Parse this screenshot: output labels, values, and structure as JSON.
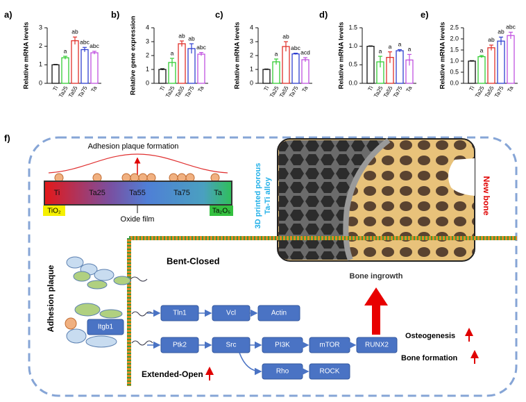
{
  "chart_data": [
    {
      "type": "bar",
      "panel": "a)",
      "ylabel": "Relative mRNA levels",
      "categories": [
        "Ti",
        "Ta25",
        "Ta55",
        "Ta75",
        "Ta"
      ],
      "values": [
        1.0,
        1.38,
        2.3,
        1.82,
        1.65
      ],
      "errors": [
        0.02,
        0.08,
        0.2,
        0.12,
        0.08
      ],
      "annotations": [
        null,
        "a",
        "ab",
        "abc",
        "abc"
      ],
      "colors": [
        "#111111",
        "#33cc33",
        "#e0302a",
        "#2f3fd0",
        "#c050e0"
      ],
      "ylim": [
        0,
        3
      ],
      "yticks": [
        0,
        1,
        2,
        3
      ]
    },
    {
      "type": "bar",
      "panel": "b)",
      "ylabel": "Relative gene expression",
      "categories": [
        "Ti",
        "Ta25",
        "Ta55",
        "Ta75",
        "Ta"
      ],
      "values": [
        1.0,
        1.5,
        2.85,
        2.5,
        2.1
      ],
      "errors": [
        0.05,
        0.3,
        0.2,
        0.35,
        0.12
      ],
      "annotations": [
        null,
        "a",
        "ab",
        "ab",
        "abc"
      ],
      "colors": [
        "#111111",
        "#33cc33",
        "#e0302a",
        "#2f3fd0",
        "#c050e0"
      ],
      "ylim": [
        0,
        4
      ],
      "yticks": [
        0,
        1,
        2,
        3,
        4
      ]
    },
    {
      "type": "bar",
      "panel": "c)",
      "ylabel": "Relative mRNA levels",
      "categories": [
        "Ti",
        "Ta25",
        "Ta55",
        "Ta75",
        "Ta"
      ],
      "values": [
        1.0,
        1.55,
        2.65,
        2.12,
        1.7
      ],
      "errors": [
        0.03,
        0.2,
        0.35,
        0.05,
        0.15
      ],
      "annotations": [
        null,
        "a",
        "ab",
        "abc",
        "acd"
      ],
      "colors": [
        "#111111",
        "#33cc33",
        "#e0302a",
        "#2f3fd0",
        "#c050e0"
      ],
      "ylim": [
        0,
        4
      ],
      "yticks": [
        0,
        1,
        2,
        3,
        4
      ]
    },
    {
      "type": "bar",
      "panel": "d)",
      "ylabel": "Relative mRNA levels",
      "categories": [
        "Ti",
        "Ta25",
        "Ta55",
        "Ta75",
        "Ta"
      ],
      "values": [
        1.0,
        0.58,
        0.7,
        0.88,
        0.63
      ],
      "errors": [
        0.01,
        0.15,
        0.15,
        0.03,
        0.15
      ],
      "annotations": [
        null,
        "a",
        "a",
        "a",
        "a"
      ],
      "colors": [
        "#111111",
        "#33cc33",
        "#e0302a",
        "#2f3fd0",
        "#c050e0"
      ],
      "ylim": [
        0,
        1.5
      ],
      "yticks": [
        {
          "value": 0,
          "label": "0.0"
        },
        {
          "value": 0.5,
          "label": "0.5"
        },
        {
          "value": 1,
          "label": "1.0"
        },
        {
          "value": 1.5,
          "label": "1.5"
        }
      ]
    },
    {
      "type": "bar",
      "panel": "e)",
      "ylabel": "Relative mRNA levels",
      "categories": [
        "Ti",
        "Ta25",
        "Ta55",
        "Ta75",
        "Ta"
      ],
      "values": [
        1.0,
        1.2,
        1.6,
        1.9,
        2.15
      ],
      "errors": [
        0.02,
        0.05,
        0.12,
        0.18,
        0.15
      ],
      "annotations": [
        null,
        "a",
        "ab",
        "ab",
        "abc"
      ],
      "colors": [
        "#111111",
        "#33cc33",
        "#e0302a",
        "#2f3fd0",
        "#c050e0"
      ],
      "ylim": [
        0,
        2.5
      ],
      "yticks": [
        {
          "value": 0,
          "label": "0.0"
        },
        {
          "value": 0.5,
          "label": "0.5"
        },
        {
          "value": 1,
          "label": "1.0"
        },
        {
          "value": 1.5,
          "label": "1.5"
        },
        {
          "value": 2,
          "label": "2.0"
        },
        {
          "value": 2.5,
          "label": "2.5"
        }
      ]
    }
  ],
  "diagram": {
    "panel": "f)",
    "plaque_title": "Adhesion plaque formation",
    "film": [
      "Ti",
      "Ta25",
      "Ta55",
      "Ta75",
      "Ta"
    ],
    "left_oxide": "TiO₂",
    "right_oxide": "Ta₂O₅",
    "oxide_film": "Oxide film",
    "alloy": [
      "3D printed porous",
      "Ta-Ti alloy"
    ],
    "new_bone": "New bone",
    "ingrowth": "Bone ingrowth",
    "adhesion_plaque": "Adhesion plaque",
    "bent": "Bent-Closed",
    "extended": "Extended-Open",
    "itgb1": "Itgb1",
    "nodes": [
      "Tln1",
      "Vcl",
      "Actin",
      "Ptk2",
      "Src",
      "PI3K",
      "mTOR",
      "RUNX2",
      "Rho",
      "ROCK"
    ],
    "osteogenesis": "Osteogenesis",
    "bone_formation": "Bone formation"
  }
}
